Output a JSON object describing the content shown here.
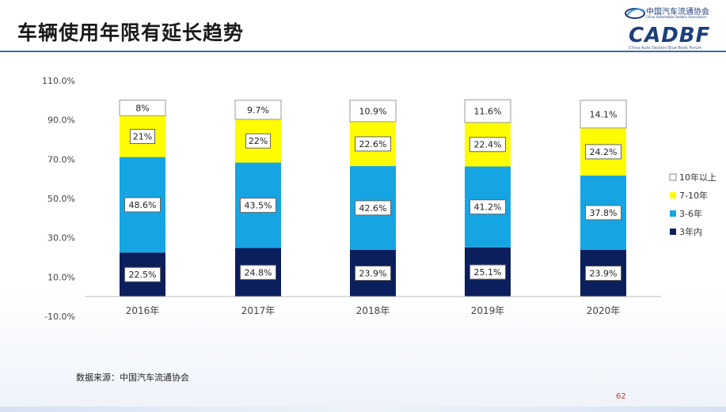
{
  "slide": {
    "title": "车辆使用年限有延长趋势",
    "source": "数据来源：中国汽车流通协会",
    "page_number": "62"
  },
  "logo": {
    "cn_name": "中国汽车流通协会",
    "en_name": "China Automobile Dealers Association",
    "big_text": "CADBF",
    "tagline": "China Auto Dealers Blue-Book Forum"
  },
  "colors": {
    "s1": "#0b1f5c",
    "s2": "#16a5e3",
    "s3": "#fffb00",
    "s4": "#ffffff",
    "title_rule": "#3a6ab0",
    "label_border": "#666666"
  },
  "chart_data": {
    "type": "bar",
    "stacked": true,
    "categories": [
      "2016年",
      "2017年",
      "2018年",
      "2019年",
      "2020年"
    ],
    "series": [
      {
        "name": "3年内",
        "values": [
          22.5,
          24.8,
          23.9,
          25.1,
          23.9
        ],
        "labels": [
          "22.5%",
          "24.8%",
          "23.9%",
          "25.1%",
          "23.9%"
        ],
        "color": "#0b1f5c"
      },
      {
        "name": "3-6年",
        "values": [
          48.6,
          43.5,
          42.6,
          41.2,
          37.8
        ],
        "labels": [
          "48.6%",
          "43.5%",
          "42.6%",
          "41.2%",
          "37.8%"
        ],
        "color": "#16a5e3"
      },
      {
        "name": "7-10年",
        "values": [
          21,
          22,
          22.6,
          22.4,
          24.2
        ],
        "labels": [
          "21%",
          "22%",
          "22.6%",
          "22.4%",
          "24.2%"
        ],
        "color": "#fffb00"
      },
      {
        "name": "10年以上",
        "values": [
          8,
          9.7,
          10.9,
          11.6,
          14.1
        ],
        "labels": [
          "8%",
          "9.7%",
          "10.9%",
          "11.6%",
          "14.1%"
        ],
        "color": "#ffffff"
      }
    ],
    "ylim": [
      -10,
      110
    ],
    "yticks": [
      "110.0%",
      "90.0%",
      "70.0%",
      "50.0%",
      "30.0%",
      "10.0%",
      "-10.0%"
    ],
    "ytick_values": [
      110,
      90,
      70,
      50,
      30,
      10,
      -10
    ],
    "legend_position": "right",
    "legend": [
      "10年以上",
      "7-10年",
      "3-6年",
      "3年内"
    ],
    "grid": false
  }
}
